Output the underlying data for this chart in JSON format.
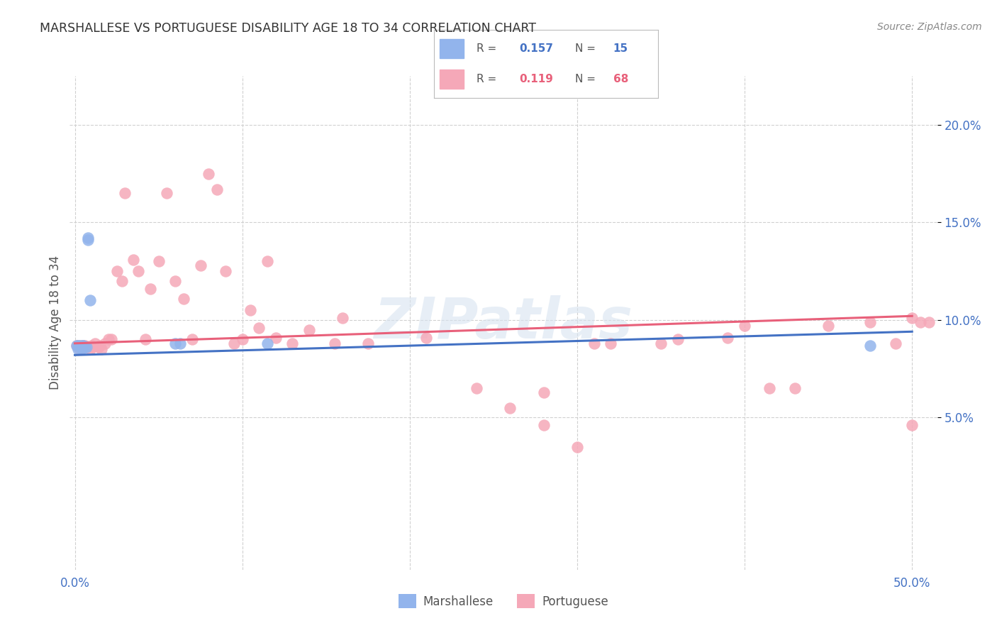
{
  "title": "MARSHALLESE VS PORTUGUESE DISABILITY AGE 18 TO 34 CORRELATION CHART",
  "source": "Source: ZipAtlas.com",
  "ylabel": "Disability Age 18 to 34",
  "watermark_text": "ZIPatlas",
  "xlim": [
    -0.003,
    0.515
  ],
  "ylim": [
    -0.028,
    0.225
  ],
  "xticks": [
    0.0,
    0.1,
    0.2,
    0.3,
    0.4,
    0.5
  ],
  "xticklabels": [
    "0.0%",
    "",
    "",
    "",
    "",
    "50.0%"
  ],
  "yticks": [
    0.05,
    0.1,
    0.15,
    0.2
  ],
  "yticklabels": [
    "5.0%",
    "10.0%",
    "15.0%",
    "20.0%"
  ],
  "blue_scatter_color": "#92b4ec",
  "pink_scatter_color": "#f5a8b8",
  "blue_line_color": "#4472c4",
  "pink_line_color": "#e8607a",
  "blue_line": [
    0.0,
    0.082,
    0.5,
    0.094
  ],
  "pink_line": [
    0.0,
    0.088,
    0.5,
    0.102
  ],
  "marshallese_x": [
    0.001,
    0.002,
    0.002,
    0.003,
    0.003,
    0.004,
    0.004,
    0.005,
    0.005,
    0.006,
    0.007,
    0.008,
    0.008,
    0.009,
    0.06,
    0.063,
    0.115,
    0.475
  ],
  "marshallese_y": [
    0.087,
    0.087,
    0.085,
    0.087,
    0.086,
    0.086,
    0.085,
    0.087,
    0.087,
    0.086,
    0.086,
    0.142,
    0.141,
    0.11,
    0.088,
    0.088,
    0.088,
    0.087
  ],
  "portuguese_x": [
    0.001,
    0.002,
    0.003,
    0.003,
    0.004,
    0.005,
    0.006,
    0.006,
    0.007,
    0.008,
    0.009,
    0.01,
    0.011,
    0.012,
    0.014,
    0.015,
    0.016,
    0.018,
    0.02,
    0.022,
    0.025,
    0.028,
    0.03,
    0.035,
    0.038,
    0.042,
    0.045,
    0.05,
    0.055,
    0.06,
    0.065,
    0.07,
    0.075,
    0.08,
    0.085,
    0.09,
    0.095,
    0.1,
    0.105,
    0.11,
    0.115,
    0.12,
    0.13,
    0.14,
    0.155,
    0.16,
    0.175,
    0.21,
    0.24,
    0.26,
    0.28,
    0.31,
    0.32,
    0.35,
    0.36,
    0.39,
    0.4,
    0.415,
    0.43,
    0.45,
    0.475,
    0.49,
    0.5,
    0.505,
    0.51,
    0.28,
    0.3,
    0.5
  ],
  "portuguese_y": [
    0.087,
    0.086,
    0.085,
    0.087,
    0.086,
    0.087,
    0.086,
    0.087,
    0.086,
    0.086,
    0.085,
    0.087,
    0.086,
    0.088,
    0.086,
    0.087,
    0.085,
    0.088,
    0.09,
    0.09,
    0.125,
    0.12,
    0.165,
    0.131,
    0.125,
    0.09,
    0.116,
    0.13,
    0.165,
    0.12,
    0.111,
    0.09,
    0.128,
    0.175,
    0.167,
    0.125,
    0.088,
    0.09,
    0.105,
    0.096,
    0.13,
    0.091,
    0.088,
    0.095,
    0.088,
    0.101,
    0.088,
    0.091,
    0.065,
    0.055,
    0.063,
    0.088,
    0.088,
    0.088,
    0.09,
    0.091,
    0.097,
    0.065,
    0.065,
    0.097,
    0.099,
    0.088,
    0.101,
    0.099,
    0.099,
    0.046,
    0.035,
    0.046
  ]
}
